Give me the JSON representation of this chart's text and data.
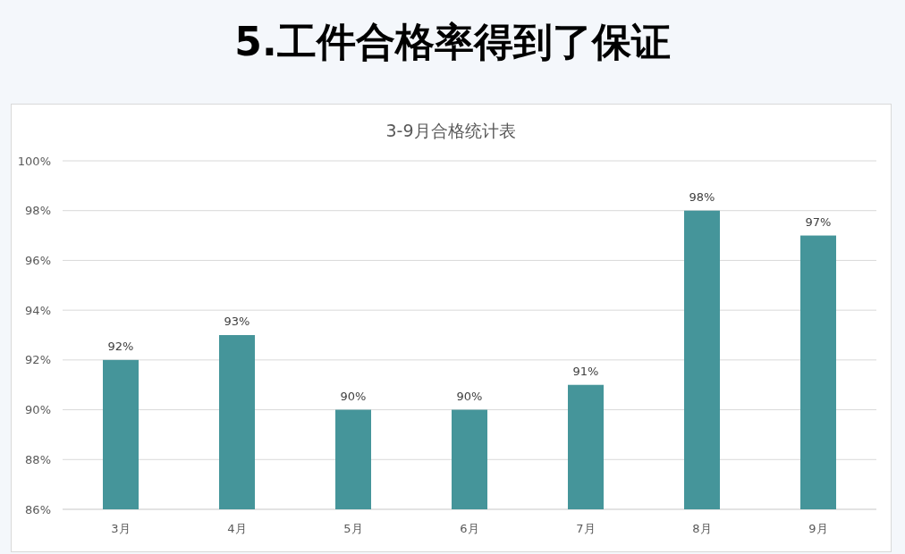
{
  "chart_data": {
    "type": "bar",
    "title": "5.工件合格率得到了保证",
    "subtitle": "3-9月合格统计表",
    "categories": [
      "3月",
      "4月",
      "5月",
      "6月",
      "7月",
      "8月",
      "9月"
    ],
    "values": [
      92,
      93,
      90,
      90,
      91,
      98,
      97
    ],
    "value_labels": [
      "92%",
      "93%",
      "90%",
      "90%",
      "91%",
      "98%",
      "97%"
    ],
    "color": "#45959a",
    "ylim": [
      86,
      100
    ],
    "yticks": [
      {
        "value": 86,
        "label": "86%"
      },
      {
        "value": 88,
        "label": "88%"
      },
      {
        "value": 90,
        "label": "90%"
      },
      {
        "value": 92,
        "label": "92%"
      },
      {
        "value": 94,
        "label": "94%"
      },
      {
        "value": 96,
        "label": "96%"
      },
      {
        "value": 98,
        "label": "98%"
      },
      {
        "value": 100,
        "label": "100%"
      }
    ],
    "grid": "y"
  }
}
